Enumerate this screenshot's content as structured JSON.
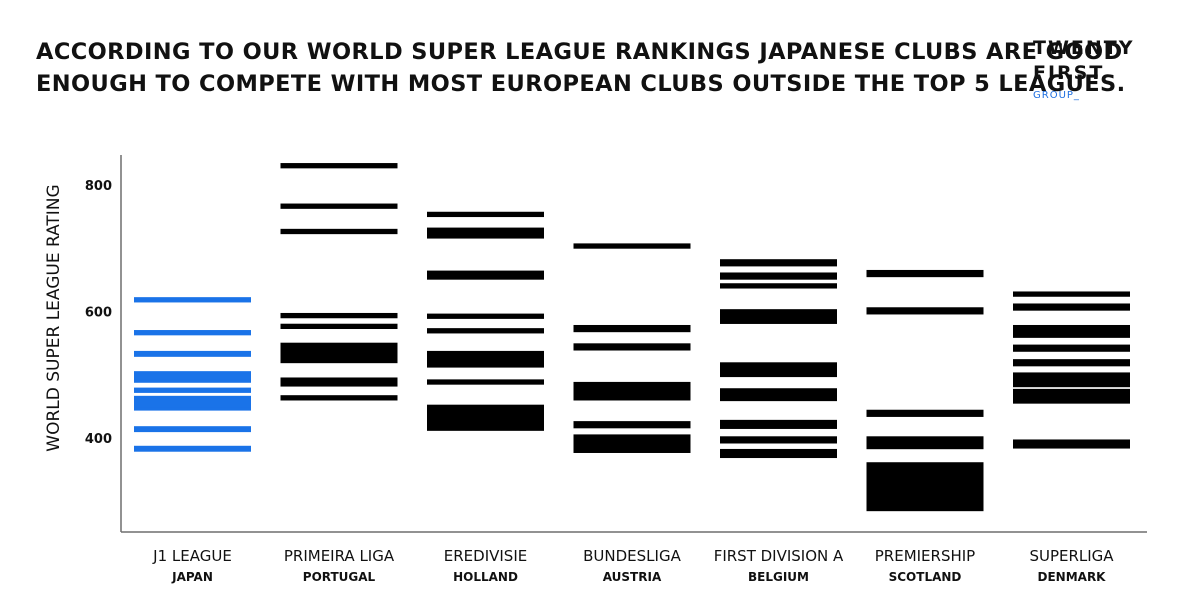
{
  "header": {
    "title_line1": "ACCORDING TO OUR WORLD SUPER LEAGUE RANKINGS JAPANESE CLUBS ARE GOOD",
    "title_line2": "ENOUGH TO COMPETE WITH MOST EUROPEAN CLUBS OUTSIDE THE TOP 5 LEAGUES."
  },
  "logo": {
    "line1": "TWENTY",
    "line2": "FIRST",
    "line3": "GROUP_"
  },
  "chart_data": {
    "type": "scatter",
    "ylabel": "WORLD SUPER LEAGUE RATING",
    "xlabel": "",
    "ylim": [
      280,
      850
    ],
    "yticks": [
      400,
      600,
      800
    ],
    "grid": false,
    "colors": {
      "highlight": "#1a73e8",
      "default": "#000000"
    },
    "categories": [
      {
        "name": "J1 LEAGUE",
        "country": "JAPAN",
        "highlight": true,
        "values": [
          620,
          617,
          568,
          565,
          535,
          531,
          503,
          500,
          497,
          494,
          490,
          477,
          474,
          464,
          461,
          458,
          455,
          452,
          449,
          446,
          416,
          412,
          385,
          381
        ]
      },
      {
        "name": "PRIMEIRA LIGA",
        "country": "PORTUGAL",
        "highlight": false,
        "values": [
          832,
          829,
          768,
          765,
          728,
          725,
          595,
          592,
          578,
          575,
          548,
          545,
          542,
          539,
          536,
          533,
          530,
          527,
          524,
          521,
          493,
          490,
          487,
          484,
          465,
          462
        ]
      },
      {
        "name": "EREDIVISIE",
        "country": "HOLLAND",
        "highlight": false,
        "values": [
          755,
          752,
          730,
          727,
          724,
          721,
          718,
          662,
          659,
          656,
          653,
          594,
          591,
          571,
          568,
          535,
          532,
          529,
          526,
          523,
          520,
          517,
          514,
          490,
          487,
          450,
          447,
          444,
          441,
          438,
          435,
          432,
          429,
          426,
          423,
          420,
          417,
          414
        ]
      },
      {
        "name": "BUNDESLIGA",
        "country": "AUSTRIA",
        "highlight": false,
        "values": [
          705,
          702,
          576,
          573,
          570,
          547,
          544,
          541,
          486,
          483,
          480,
          477,
          474,
          471,
          468,
          465,
          462,
          424,
          421,
          418,
          403,
          400,
          397,
          394,
          391,
          388,
          385,
          382,
          379
        ]
      },
      {
        "name": "FIRST DIVISION A",
        "country": "BELGIUM",
        "highlight": false,
        "values": [
          680,
          677,
          674,
          659,
          656,
          653,
          642,
          639,
          601,
          598,
          595,
          592,
          589,
          586,
          583,
          517,
          514,
          511,
          508,
          505,
          502,
          499,
          476,
          473,
          470,
          467,
          464,
          461,
          426,
          423,
          420,
          417,
          400,
          397,
          394,
          380,
          377,
          374,
          371
        ]
      },
      {
        "name": "PREMIERSHIP",
        "country": "SCOTLAND",
        "highlight": false,
        "values": [
          663,
          660,
          657,
          604,
          601,
          598,
          442,
          439,
          436,
          400,
          397,
          394,
          391,
          388,
          385,
          359,
          356,
          353,
          350,
          347,
          344,
          341,
          338,
          335,
          332,
          329,
          326,
          323,
          320,
          317,
          314,
          311,
          308,
          305,
          302,
          299,
          296,
          293,
          290,
          287
        ]
      },
      {
        "name": "SUPERLIGA",
        "country": "DENMARK",
        "highlight": false,
        "values": [
          629,
          626,
          610,
          607,
          604,
          576,
          573,
          570,
          567,
          564,
          561,
          545,
          542,
          539,
          522,
          519,
          516,
          501,
          498,
          495,
          492,
          489,
          486,
          483,
          475,
          472,
          469,
          466,
          463,
          460,
          457,
          395,
          392,
          389,
          386
        ]
      }
    ]
  }
}
